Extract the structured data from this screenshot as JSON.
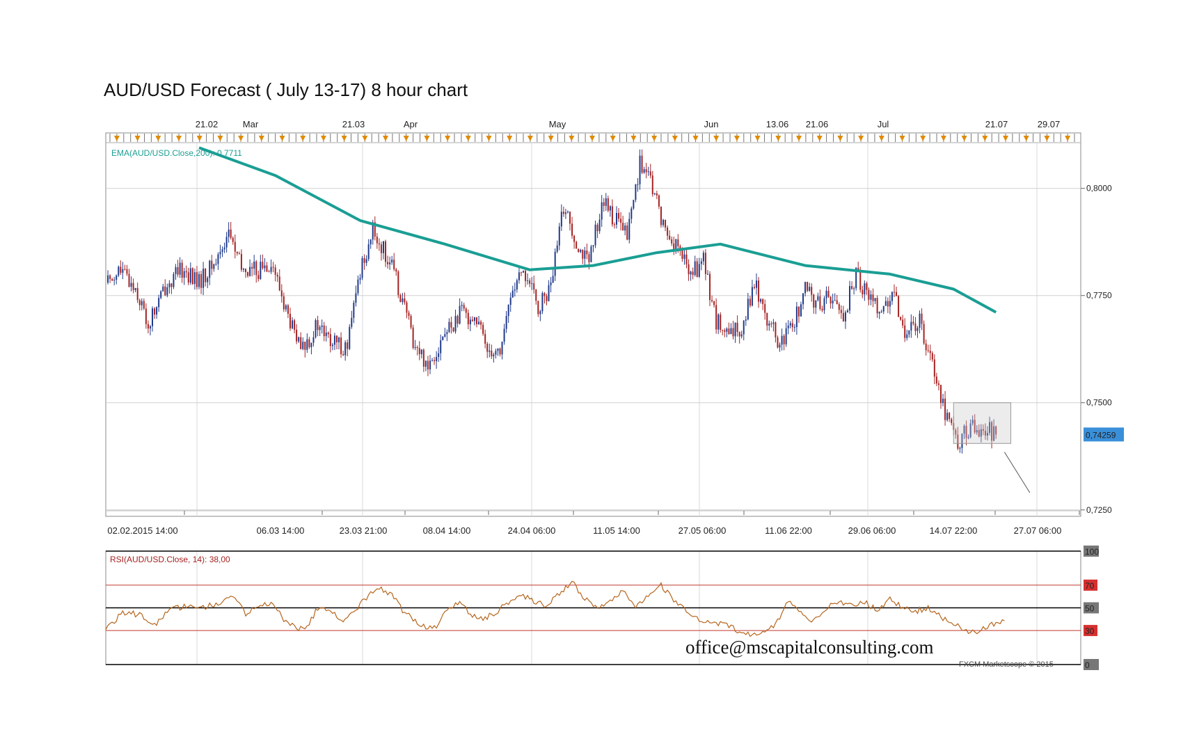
{
  "title": "AUD/USD Forecast ( July 13-17) 8 hour chart",
  "watermark_email": "office@mscapitalconsulting.com",
  "credit": "FXCM Marketscope © 2015",
  "colors": {
    "ema": "#1a9e94",
    "bull": "#1f3a8a",
    "bear": "#a52222",
    "rsi": "#b5651d",
    "rsi_level_lines": "#c0392b",
    "current_price_bg": "#3a8fd9",
    "event_marker": "#e08a00"
  },
  "chart_data": [
    {
      "type": "candlestick",
      "symbol": "AUD/USD",
      "timeframe": "8 hour",
      "top_dates": [
        "21.02",
        "Mar",
        "21.03",
        "Apr",
        "May",
        "Jun",
        "13.06",
        "21.06",
        "Jul",
        "21.07",
        "29.07"
      ],
      "x_tick_labels": [
        "02.02.2015 14:00",
        "06.03 14:00",
        "23.03 21:00",
        "08.04 14:00",
        "24.04 06:00",
        "11.05 14:00",
        "27.05 06:00",
        "11.06 22:00",
        "29.06 06:00",
        "14.07 22:00",
        "27.07 06:00"
      ],
      "y_tick_labels": [
        "0,8000",
        "0,7750",
        "0,7500",
        "0,7250"
      ],
      "ylim": [
        0.7235,
        0.8105
      ],
      "current_price": "0,74259",
      "ema_label": "EMA(AUD/USD.Close,200): 0,7711",
      "close_path": [
        {
          "x": 0,
          "y": 0.778
        },
        {
          "x": 3,
          "y": 0.781
        },
        {
          "x": 7,
          "y": 0.777
        },
        {
          "x": 10,
          "y": 0.768
        },
        {
          "x": 14,
          "y": 0.777
        },
        {
          "x": 18,
          "y": 0.781
        },
        {
          "x": 22,
          "y": 0.778
        },
        {
          "x": 26,
          "y": 0.783
        },
        {
          "x": 29,
          "y": 0.79
        },
        {
          "x": 32,
          "y": 0.781
        },
        {
          "x": 36,
          "y": 0.781
        },
        {
          "x": 39,
          "y": 0.783
        },
        {
          "x": 43,
          "y": 0.77
        },
        {
          "x": 46,
          "y": 0.762
        },
        {
          "x": 50,
          "y": 0.768
        },
        {
          "x": 53,
          "y": 0.764
        },
        {
          "x": 57,
          "y": 0.763
        },
        {
          "x": 60,
          "y": 0.781
        },
        {
          "x": 63,
          "y": 0.79
        },
        {
          "x": 67,
          "y": 0.783
        },
        {
          "x": 70,
          "y": 0.774
        },
        {
          "x": 73,
          "y": 0.763
        },
        {
          "x": 76,
          "y": 0.759
        },
        {
          "x": 80,
          "y": 0.766
        },
        {
          "x": 84,
          "y": 0.771
        },
        {
          "x": 87,
          "y": 0.77
        },
        {
          "x": 90,
          "y": 0.763
        },
        {
          "x": 93,
          "y": 0.762
        },
        {
          "x": 96,
          "y": 0.777
        },
        {
          "x": 99,
          "y": 0.78
        },
        {
          "x": 102,
          "y": 0.772
        },
        {
          "x": 105,
          "y": 0.777
        },
        {
          "x": 108,
          "y": 0.796
        },
        {
          "x": 111,
          "y": 0.788
        },
        {
          "x": 114,
          "y": 0.782
        },
        {
          "x": 117,
          "y": 0.797
        },
        {
          "x": 120,
          "y": 0.793
        },
        {
          "x": 123,
          "y": 0.789
        },
        {
          "x": 126,
          "y": 0.806
        },
        {
          "x": 129,
          "y": 0.8
        },
        {
          "x": 132,
          "y": 0.79
        },
        {
          "x": 135,
          "y": 0.786
        },
        {
          "x": 138,
          "y": 0.78
        },
        {
          "x": 141,
          "y": 0.783
        },
        {
          "x": 144,
          "y": 0.769
        },
        {
          "x": 147,
          "y": 0.765
        },
        {
          "x": 150,
          "y": 0.768
        },
        {
          "x": 153,
          "y": 0.778
        },
        {
          "x": 156,
          "y": 0.77
        },
        {
          "x": 159,
          "y": 0.763
        },
        {
          "x": 162,
          "y": 0.768
        },
        {
          "x": 165,
          "y": 0.776
        },
        {
          "x": 168,
          "y": 0.773
        },
        {
          "x": 171,
          "y": 0.775
        },
        {
          "x": 174,
          "y": 0.77
        },
        {
          "x": 177,
          "y": 0.78
        },
        {
          "x": 180,
          "y": 0.775
        },
        {
          "x": 183,
          "y": 0.772
        },
        {
          "x": 186,
          "y": 0.774
        },
        {
          "x": 189,
          "y": 0.766
        },
        {
          "x": 192,
          "y": 0.769
        },
        {
          "x": 195,
          "y": 0.76
        },
        {
          "x": 198,
          "y": 0.748
        },
        {
          "x": 201,
          "y": 0.741
        },
        {
          "x": 204,
          "y": 0.744
        },
        {
          "x": 207,
          "y": 0.744
        },
        {
          "x": 210,
          "y": 0.7426
        }
      ],
      "ema_path": [
        {
          "x": 22,
          "y": 0.8095
        },
        {
          "x": 40,
          "y": 0.803
        },
        {
          "x": 60,
          "y": 0.7925
        },
        {
          "x": 80,
          "y": 0.787
        },
        {
          "x": 100,
          "y": 0.781
        },
        {
          "x": 115,
          "y": 0.782
        },
        {
          "x": 130,
          "y": 0.785
        },
        {
          "x": 145,
          "y": 0.787
        },
        {
          "x": 165,
          "y": 0.782
        },
        {
          "x": 185,
          "y": 0.78
        },
        {
          "x": 200,
          "y": 0.7765
        },
        {
          "x": 210,
          "y": 0.7711
        }
      ],
      "projection": {
        "from": {
          "x": 212,
          "y": 0.7385
        },
        "to": {
          "x": 218,
          "y": 0.729
        }
      }
    },
    {
      "type": "line",
      "indicator_label": "RSI(AUD/USD.Close, 14): 38,00",
      "y_tick_labels": [
        "100",
        "70",
        "50",
        "30",
        "0"
      ],
      "ylim": [
        0,
        100
      ],
      "levels": [
        70,
        50,
        30
      ],
      "rsi_path": [
        {
          "x": 0,
          "y": 30
        },
        {
          "x": 4,
          "y": 46
        },
        {
          "x": 8,
          "y": 44
        },
        {
          "x": 11,
          "y": 33
        },
        {
          "x": 15,
          "y": 48
        },
        {
          "x": 19,
          "y": 52
        },
        {
          "x": 23,
          "y": 50
        },
        {
          "x": 27,
          "y": 55
        },
        {
          "x": 30,
          "y": 60
        },
        {
          "x": 33,
          "y": 45
        },
        {
          "x": 36,
          "y": 50
        },
        {
          "x": 39,
          "y": 55
        },
        {
          "x": 42,
          "y": 40
        },
        {
          "x": 45,
          "y": 33
        },
        {
          "x": 47,
          "y": 30
        },
        {
          "x": 50,
          "y": 50
        },
        {
          "x": 53,
          "y": 46
        },
        {
          "x": 56,
          "y": 40
        },
        {
          "x": 59,
          "y": 48
        },
        {
          "x": 61,
          "y": 57
        },
        {
          "x": 63,
          "y": 64
        },
        {
          "x": 65,
          "y": 66
        },
        {
          "x": 68,
          "y": 60
        },
        {
          "x": 70,
          "y": 48
        },
        {
          "x": 73,
          "y": 38
        },
        {
          "x": 76,
          "y": 33
        },
        {
          "x": 78,
          "y": 32
        },
        {
          "x": 80,
          "y": 48
        },
        {
          "x": 83,
          "y": 55
        },
        {
          "x": 86,
          "y": 45
        },
        {
          "x": 89,
          "y": 40
        },
        {
          "x": 92,
          "y": 46
        },
        {
          "x": 95,
          "y": 55
        },
        {
          "x": 98,
          "y": 62
        },
        {
          "x": 101,
          "y": 55
        },
        {
          "x": 104,
          "y": 52
        },
        {
          "x": 107,
          "y": 62
        },
        {
          "x": 110,
          "y": 73
        },
        {
          "x": 113,
          "y": 58
        },
        {
          "x": 116,
          "y": 48
        },
        {
          "x": 119,
          "y": 55
        },
        {
          "x": 122,
          "y": 66
        },
        {
          "x": 125,
          "y": 52
        },
        {
          "x": 128,
          "y": 60
        },
        {
          "x": 131,
          "y": 70
        },
        {
          "x": 134,
          "y": 57
        },
        {
          "x": 137,
          "y": 48
        },
        {
          "x": 140,
          "y": 40
        },
        {
          "x": 143,
          "y": 35
        },
        {
          "x": 146,
          "y": 36
        },
        {
          "x": 149,
          "y": 30
        },
        {
          "x": 152,
          "y": 27
        },
        {
          "x": 155,
          "y": 29
        },
        {
          "x": 158,
          "y": 35
        },
        {
          "x": 161,
          "y": 56
        },
        {
          "x": 164,
          "y": 45
        },
        {
          "x": 167,
          "y": 38
        },
        {
          "x": 170,
          "y": 50
        },
        {
          "x": 173,
          "y": 56
        },
        {
          "x": 176,
          "y": 52
        },
        {
          "x": 179,
          "y": 55
        },
        {
          "x": 182,
          "y": 48
        },
        {
          "x": 185,
          "y": 58
        },
        {
          "x": 188,
          "y": 50
        },
        {
          "x": 191,
          "y": 47
        },
        {
          "x": 194,
          "y": 50
        },
        {
          "x": 197,
          "y": 42
        },
        {
          "x": 200,
          "y": 36
        },
        {
          "x": 203,
          "y": 30
        },
        {
          "x": 206,
          "y": 29
        },
        {
          "x": 209,
          "y": 35
        },
        {
          "x": 212,
          "y": 40
        }
      ]
    }
  ]
}
